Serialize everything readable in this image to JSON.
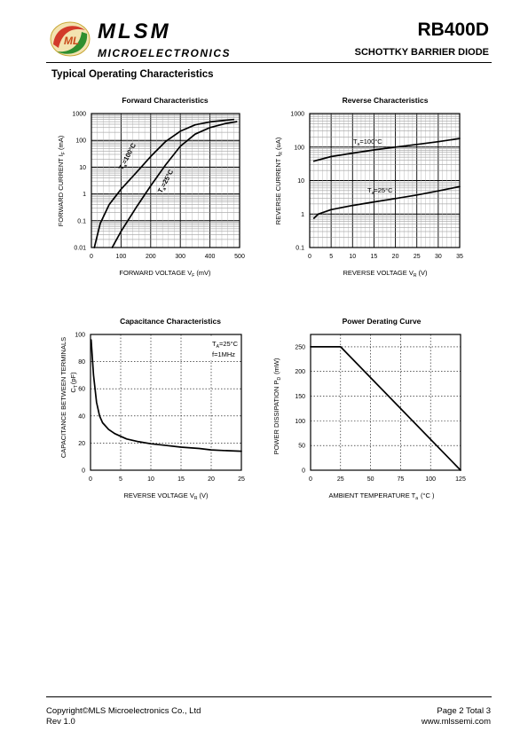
{
  "header": {
    "brand": "MLSM",
    "brand_sub": "MICROELECTRONICS",
    "part_number": "RB400D",
    "part_desc": "SCHOTTKY BARRIER  DIODE"
  },
  "section_title": "Typical Operating Characteristics",
  "footer": {
    "copyright": "Copyright©MLS Microelectronics Co., Ltd",
    "rev": "Rev 1.0",
    "page": "Page 2 Total 3",
    "url": "www.mlssemi.com"
  },
  "chart_data": [
    {
      "type": "line",
      "title": "Forward  Characteristics",
      "xlabel": "FORWARD VOLTAGE  V",
      "xlabel_sub": "F",
      "xlabel_unit": "(mV)",
      "ylabel": "FORWARD CURRENT    I",
      "ylabel_sub": "F",
      "ylabel_unit": "(mA)",
      "xlim": [
        0,
        500
      ],
      "ylim": [
        0.01,
        1000
      ],
      "yscale": "log",
      "xticks": [
        0,
        100,
        200,
        300,
        400,
        500
      ],
      "yticks": [
        0.01,
        0.1,
        1,
        10,
        100,
        1000
      ],
      "ytick_labels": [
        "0.01",
        "0.1",
        "1",
        "10",
        "100",
        "1000"
      ],
      "series": [
        {
          "name": "Ta=100°C",
          "x": [
            10,
            30,
            60,
            100,
            150,
            200,
            250,
            300,
            350,
            400,
            450,
            480
          ],
          "y": [
            0.01,
            0.08,
            0.4,
            1.5,
            6,
            25,
            90,
            220,
            380,
            490,
            560,
            600
          ]
        },
        {
          "name": "Ta=25°C",
          "x": [
            70,
            100,
            150,
            200,
            250,
            300,
            350,
            400,
            450,
            490
          ],
          "y": [
            0.01,
            0.04,
            0.3,
            2,
            12,
            60,
            170,
            300,
            420,
            500
          ]
        }
      ]
    },
    {
      "type": "line",
      "title": "Reverse  Characteristics",
      "xlabel": "REVERSE VOLTAGE    V",
      "xlabel_sub": "R",
      "xlabel_unit": "(V)",
      "ylabel": "REVERSE CURRENT    I",
      "ylabel_sub": "R",
      "ylabel_unit": "(uA)",
      "xlim": [
        0,
        35
      ],
      "ylim": [
        0.1,
        1000
      ],
      "yscale": "log",
      "xticks": [
        0,
        5,
        10,
        15,
        20,
        25,
        30,
        35
      ],
      "yticks": [
        0.1,
        1,
        10,
        100,
        1000
      ],
      "ytick_labels": [
        "0.1",
        "1",
        "10",
        "100",
        "1000"
      ],
      "series": [
        {
          "name": "Ta=100°C",
          "x": [
            1,
            5,
            10,
            15,
            20,
            25,
            30,
            35
          ],
          "y": [
            38,
            52,
            66,
            82,
            100,
            120,
            145,
            180
          ]
        },
        {
          "name": "Ta=25°C",
          "x": [
            1,
            2,
            5,
            10,
            15,
            20,
            25,
            30,
            35
          ],
          "y": [
            0.75,
            1.0,
            1.35,
            1.8,
            2.3,
            2.9,
            3.7,
            4.9,
            6.6
          ]
        }
      ]
    },
    {
      "type": "line",
      "title": "Capacitance Characteristics",
      "xlabel": "REVERSE VOLTAGE   V",
      "xlabel_sub": "R",
      "xlabel_unit": "(V)",
      "ylabel": "CAPACITANCE BETWEEN TERMINALS",
      "ylabel2": "C",
      "ylabel2_sub": "T",
      "ylabel2_unit": "(pF)",
      "xlim": [
        0,
        25
      ],
      "ylim": [
        0,
        100
      ],
      "xticks": [
        0,
        5,
        10,
        15,
        20,
        25
      ],
      "yticks": [
        0,
        20,
        40,
        60,
        80,
        100
      ],
      "ytick_labels": [
        "0",
        "20",
        "40",
        "60",
        "80",
        "100"
      ],
      "annotation": [
        "TA=25°C",
        "f=1MHz"
      ],
      "series": [
        {
          "name": "",
          "x": [
            0.1,
            0.5,
            1,
            1.5,
            2,
            3,
            4,
            5,
            6,
            8,
            10,
            12,
            15,
            18,
            20,
            22,
            25
          ],
          "y": [
            96,
            70,
            50,
            40,
            35,
            30,
            27,
            25,
            23,
            21,
            19.5,
            18.5,
            17,
            16,
            15,
            14.5,
            14
          ]
        }
      ]
    },
    {
      "type": "line",
      "title": "Power Derating Curve",
      "xlabel": "AMBIENT TEMPERATURE    T",
      "xlabel_sub": "a",
      "xlabel_unit": "(°C )",
      "ylabel": "POWER  DISSIPATION  P",
      "ylabel_sub": "D",
      "ylabel_unit": "(mW)",
      "xlim": [
        0,
        125
      ],
      "ylim": [
        0,
        275
      ],
      "xticks": [
        0,
        25,
        50,
        75,
        100,
        125
      ],
      "yticks": [
        0,
        50,
        100,
        150,
        200,
        250
      ],
      "ytick_labels": [
        "0",
        "50",
        "100",
        "150",
        "200",
        "250"
      ],
      "series": [
        {
          "name": "",
          "x": [
            0,
            25,
            125
          ],
          "y": [
            250,
            250,
            0
          ]
        }
      ]
    }
  ]
}
